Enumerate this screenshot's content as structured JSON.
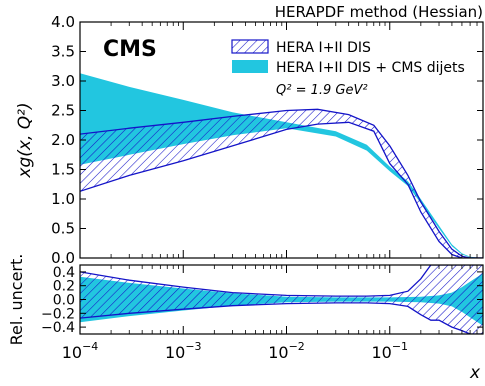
{
  "chart_data": {
    "type": "area",
    "title": "HERAPDF method (Hessian)",
    "panel_label": "CMS",
    "xlabel": "x",
    "x_scale": "log",
    "xlim": [
      0.0001,
      0.8
    ],
    "x_ticks": [
      0.0001,
      0.001,
      0.01,
      0.1
    ],
    "x_tick_labels": [
      {
        "base": "10",
        "exp": "−4"
      },
      {
        "base": "10",
        "exp": "−3"
      },
      {
        "base": "10",
        "exp": "−2"
      },
      {
        "base": "10",
        "exp": "−1"
      }
    ],
    "legend_position": "top-right",
    "annotation": "Q² = 1.9 GeV²",
    "colors": {
      "hera_outline": "#1414c8",
      "cms_fill": "#22c6e0",
      "hatch_fill": "#2b9fd4"
    },
    "series": [
      {
        "name": "HERA I+II DIS",
        "style": "hatched"
      },
      {
        "name": "HERA I+II DIS + CMS dijets",
        "style": "filled"
      }
    ],
    "panels": [
      {
        "ylabel": "xg(x, Q²)",
        "ylim": [
          0.0,
          4.0
        ],
        "yticks": [
          "0.0",
          "0.5",
          "1.0",
          "1.5",
          "2.0",
          "2.5",
          "3.0",
          "3.5",
          "4.0"
        ],
        "bands": [
          {
            "series": "HERA I+II DIS + CMS dijets",
            "x": [
              0.0001,
              0.0003,
              0.001,
              0.003,
              0.01,
              0.03,
              0.06,
              0.1,
              0.15,
              0.2,
              0.3,
              0.4,
              0.5,
              0.6,
              0.8
            ],
            "upper": [
              3.13,
              2.9,
              2.68,
              2.47,
              2.3,
              2.15,
              1.92,
              1.55,
              1.3,
              1.0,
              0.55,
              0.23,
              0.08,
              0.02,
              0.0
            ],
            "lower": [
              1.58,
              1.75,
              1.93,
              2.08,
              2.2,
              2.06,
              1.82,
              1.47,
              1.22,
              0.93,
              0.5,
              0.2,
              0.06,
              0.01,
              0.0
            ]
          },
          {
            "series": "HERA I+II DIS",
            "x": [
              0.0001,
              0.0003,
              0.001,
              0.003,
              0.01,
              0.02,
              0.04,
              0.07,
              0.1,
              0.15,
              0.2,
              0.3,
              0.4,
              0.5,
              0.6,
              0.8
            ],
            "upper": [
              2.1,
              2.2,
              2.3,
              2.4,
              2.5,
              2.52,
              2.43,
              2.25,
              1.9,
              1.4,
              0.95,
              0.45,
              0.15,
              0.03,
              0.0,
              0.0
            ],
            "lower": [
              1.13,
              1.4,
              1.65,
              1.9,
              2.18,
              2.27,
              2.3,
              2.15,
              1.6,
              1.25,
              0.78,
              0.28,
              0.06,
              0.0,
              0.0,
              0.0
            ]
          }
        ]
      },
      {
        "ylabel": "Rel. uncert.",
        "ylim": [
          -0.5,
          0.5
        ],
        "yticks": [
          "−0.4",
          "−0.2",
          "0.0",
          "0.2",
          "0.4"
        ],
        "bands": [
          {
            "series": "HERA I+II DIS + CMS dijets",
            "x": [
              0.0001,
              0.0003,
              0.001,
              0.003,
              0.01,
              0.03,
              0.1,
              0.2,
              0.3,
              0.4,
              0.5,
              0.6,
              0.8
            ],
            "upper": [
              0.33,
              0.24,
              0.16,
              0.09,
              0.04,
              0.03,
              0.03,
              0.04,
              0.06,
              0.1,
              0.18,
              0.26,
              0.38
            ],
            "lower": [
              -0.33,
              -0.24,
              -0.16,
              -0.09,
              -0.04,
              -0.03,
              -0.03,
              -0.04,
              -0.06,
              -0.1,
              -0.18,
              -0.26,
              -0.38
            ]
          },
          {
            "series": "HERA I+II DIS",
            "x": [
              0.0001,
              0.0003,
              0.001,
              0.003,
              0.01,
              0.03,
              0.06,
              0.1,
              0.15,
              0.2,
              0.25,
              0.3,
              0.4,
              0.5,
              0.6,
              0.8
            ],
            "upper": [
              0.4,
              0.28,
              0.18,
              0.1,
              0.06,
              0.05,
              0.05,
              0.06,
              0.12,
              0.3,
              0.5,
              0.5,
              0.5,
              0.5,
              0.5,
              0.5
            ],
            "lower": [
              -0.27,
              -0.2,
              -0.14,
              -0.09,
              -0.06,
              -0.05,
              -0.05,
              -0.06,
              -0.1,
              -0.22,
              -0.3,
              -0.3,
              -0.4,
              -0.45,
              -0.5,
              -0.5
            ]
          }
        ]
      }
    ]
  }
}
